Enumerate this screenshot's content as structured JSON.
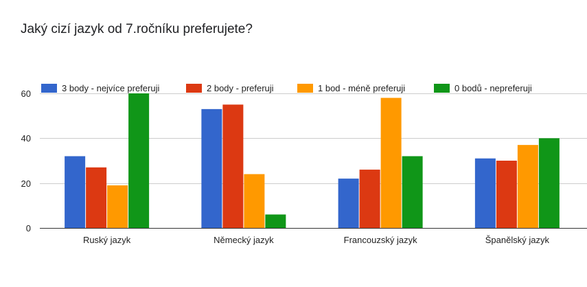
{
  "chart_data": {
    "type": "bar",
    "title": "Jaký cizí jazyk od 7.ročníku preferujete?",
    "xlabel": "",
    "ylabel": "",
    "ylim": [
      0,
      60
    ],
    "yticks": [
      0,
      20,
      40,
      60
    ],
    "grid": true,
    "legend_position": "top",
    "categories": [
      "Ruský jazyk",
      "Německý jazyk",
      "Francouzský jazyk",
      "Španělský jazyk"
    ],
    "series": [
      {
        "name": "3 body - nejvíce preferuji",
        "color": "#3366cc",
        "values": [
          32,
          53,
          22,
          31
        ]
      },
      {
        "name": "2 body - preferuji",
        "color": "#dc3912",
        "values": [
          27,
          55,
          26,
          30
        ]
      },
      {
        "name": "1 bod - méně preferuji",
        "color": "#ff9900",
        "values": [
          19,
          24,
          58,
          37
        ]
      },
      {
        "name": "0 bodů - nepreferuji",
        "color": "#109618",
        "values": [
          60,
          6,
          32,
          40
        ]
      }
    ]
  }
}
